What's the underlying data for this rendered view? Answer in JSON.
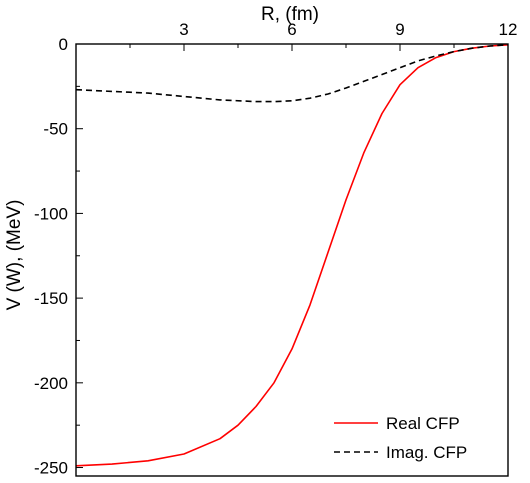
{
  "chart_data": {
    "type": "line",
    "xlabel": "R, (fm)",
    "ylabel": "V (W), (MeV)",
    "xlim": [
      0,
      12
    ],
    "ylim": [
      -255,
      0
    ],
    "x_ticks": [
      "3",
      "6",
      "9",
      "12"
    ],
    "y_ticks": [
      "0",
      "-50",
      "-100",
      "-150",
      "-200",
      "-250"
    ],
    "x_axis_position": "top",
    "legend_position": "bottom-right",
    "grid": false,
    "series": [
      {
        "name": "Real CFP",
        "color": "#ff0000",
        "dash": "solid",
        "x": [
          0,
          1,
          2,
          3,
          4,
          4.5,
          5,
          5.5,
          6,
          6.5,
          7,
          7.5,
          8,
          8.5,
          9,
          9.5,
          10,
          10.5,
          11,
          11.5,
          12
        ],
        "y": [
          -249,
          -248,
          -246,
          -242,
          -233,
          -225,
          -214,
          -200,
          -180,
          -154,
          -123,
          -92,
          -64,
          -41,
          -24,
          -14,
          -8,
          -4.5,
          -2.5,
          -1.2,
          -0.5
        ]
      },
      {
        "name": "Imag. CFP",
        "color": "#000000",
        "dash": "dashed",
        "x": [
          0,
          1,
          2,
          3,
          4,
          5,
          5.5,
          6,
          6.5,
          7,
          7.5,
          8,
          8.5,
          9,
          9.5,
          10,
          10.5,
          11,
          11.5,
          12
        ],
        "y": [
          -27,
          -28,
          -29,
          -31,
          -33,
          -34,
          -34,
          -33.5,
          -32,
          -29.5,
          -26,
          -22,
          -18,
          -14,
          -10,
          -7,
          -4.5,
          -2.5,
          -1.2,
          -0.5
        ]
      }
    ]
  }
}
